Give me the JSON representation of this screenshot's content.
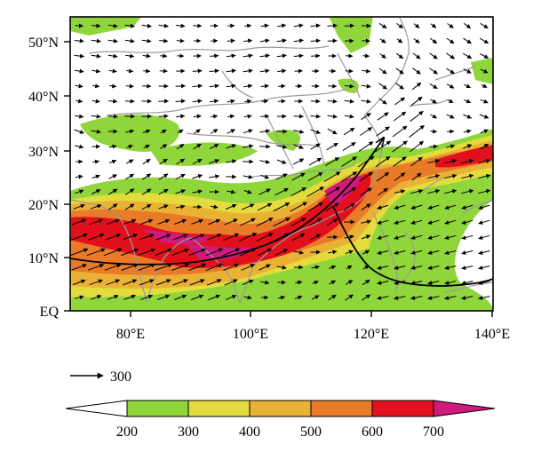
{
  "map": {
    "y_tick_labels": [
      "50°N",
      "40°N",
      "30°N",
      "20°N",
      "10°N",
      "EQ"
    ],
    "x_tick_labels": [
      "80°E",
      "100°E",
      "120°E",
      "140°E"
    ],
    "lat_range": [
      0,
      55
    ],
    "lon_range": [
      70,
      140
    ],
    "features": [
      "coastlines",
      "country boundaries",
      "province boundaries",
      "wind vectors",
      "shaded magnitude",
      "two streamlines"
    ]
  },
  "reference_vector": {
    "label": "300"
  },
  "colorbar": {
    "labels": [
      "200",
      "300",
      "400",
      "500",
      "600",
      "700"
    ],
    "colors": [
      "#ffffff",
      "#8fd63a",
      "#e4dc3c",
      "#e9b235",
      "#e97a28",
      "#e2101c",
      "#cf1a7e"
    ],
    "extend": "both"
  }
}
